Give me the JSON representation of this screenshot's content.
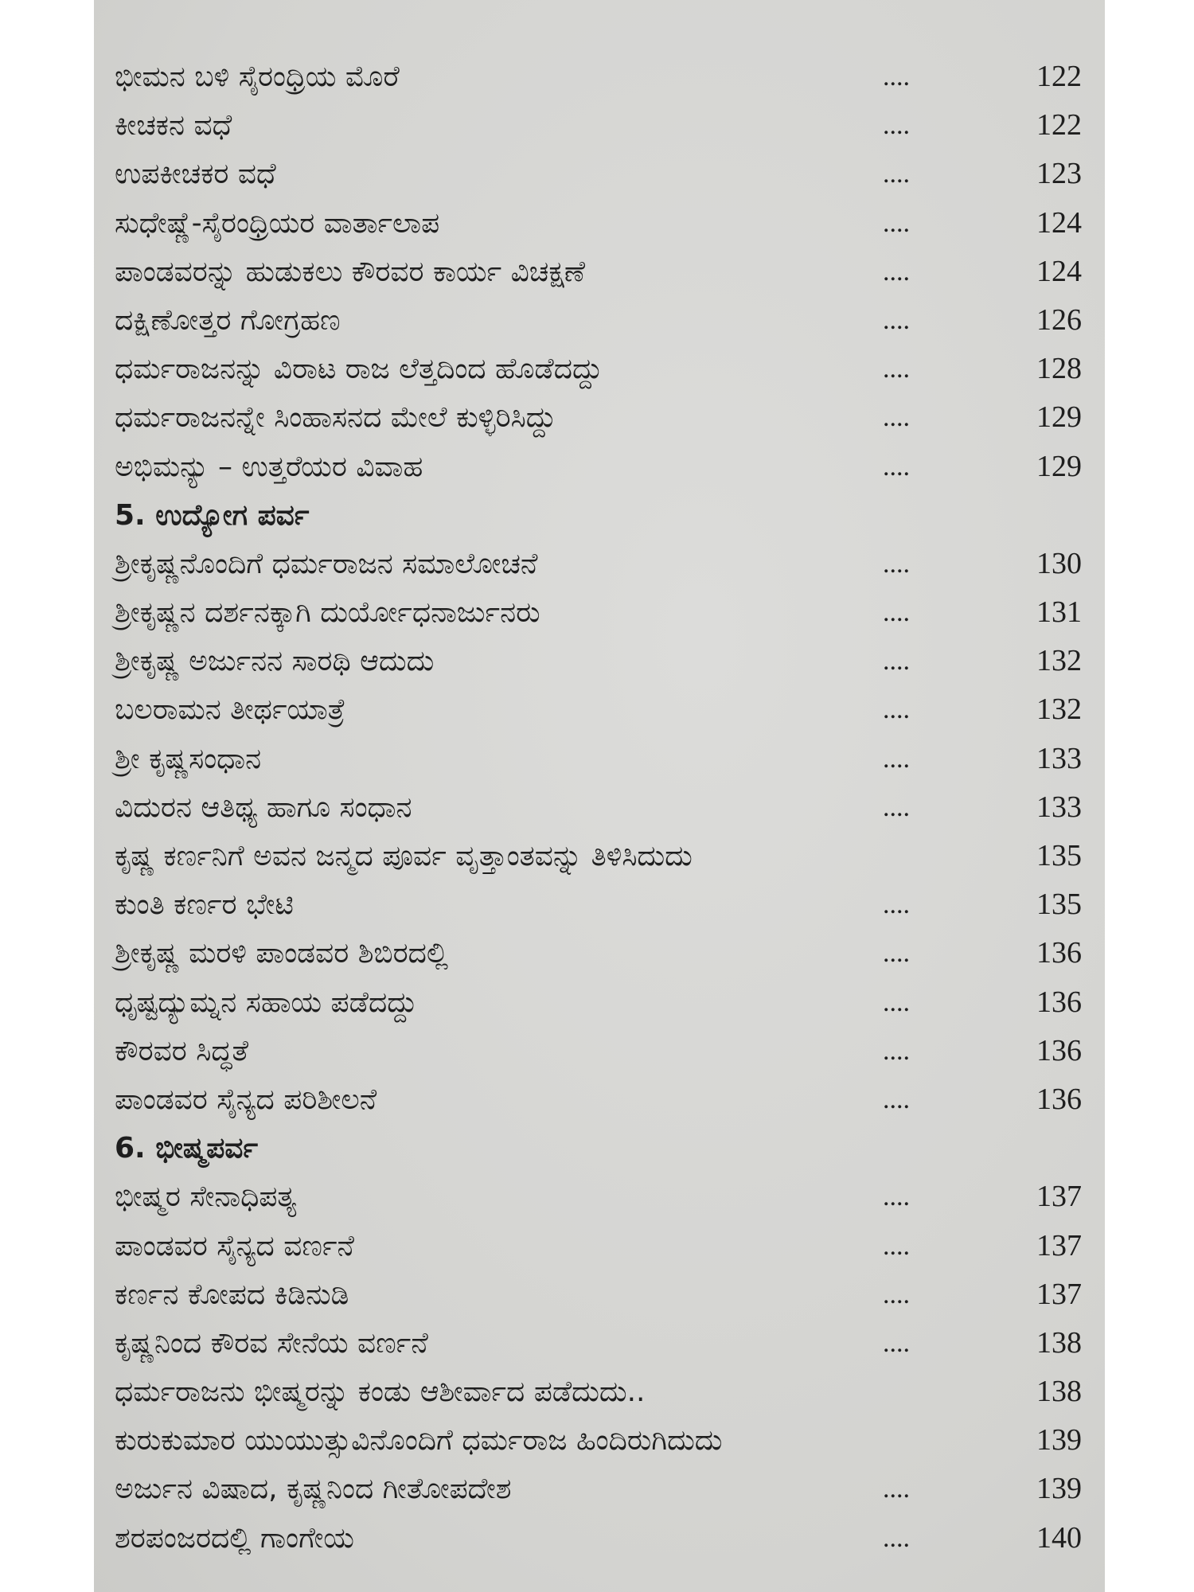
{
  "entries": [
    {
      "title": "ಭೀಮನ ಬಳಿ ಸೈರಂಧ್ರಿಯ ಮೊರೆ",
      "dots": "....",
      "page": "122"
    },
    {
      "title": "ಕೀಚಕನ ವಧೆ",
      "dots": "....",
      "page": "122"
    },
    {
      "title": "ಉಪಕೀಚಕರ ವಧೆ",
      "dots": "....",
      "page": "123"
    },
    {
      "title": "ಸುಧೇಷ್ಣೆ-ಸೈರಂಧ್ರಿಯರ ವಾರ್ತಾಲಾಪ",
      "dots": "....",
      "page": "124"
    },
    {
      "title": "ಪಾಂಡವರನ್ನು ಹುಡುಕಲು ಕೌರವರ ಕಾರ್ಯ ವಿಚಕ್ಷಣೆ",
      "dots": "....",
      "page": "124"
    },
    {
      "title": "ದಕ್ಷಿಣೋತ್ತರ ಗೋಗ್ರಹಣ",
      "dots": "....",
      "page": "126"
    },
    {
      "title": "ಧರ್ಮರಾಜನನ್ನು ವಿರಾಟ ರಾಜ ಲೆತ್ತದಿಂದ ಹೊಡೆದದ್ದು",
      "dots": "....",
      "page": "128"
    },
    {
      "title": "ಧರ್ಮರಾಜನನ್ನೇ ಸಿಂಹಾಸನದ ಮೇಲೆ ಕುಳ್ಳಿರಿಸಿದ್ದು",
      "dots": "....",
      "page": "129"
    },
    {
      "title": "ಅಭಿಮನ್ಯು – ಉತ್ತರೆಯರ ವಿವಾಹ",
      "dots": "....",
      "page": "129"
    },
    {
      "title": "5. ಉದ್ಯೋಗ ಪರ್ವ",
      "dots": "",
      "page": "",
      "header": true
    },
    {
      "title": "ಶ್ರೀಕೃಷ್ಣನೊಂದಿಗೆ ಧರ್ಮರಾಜನ ಸಮಾಲೋಚನೆ",
      "dots": "....",
      "page": "130"
    },
    {
      "title": "ಶ್ರೀಕೃಷ್ಣನ ದರ್ಶನಕ್ಕಾಗಿ ದುರ್ಯೋಧನಾರ್ಜುನರು",
      "dots": "....",
      "page": "131"
    },
    {
      "title": "ಶ್ರೀಕೃಷ್ಣ ಅರ್ಜುನನ ಸಾರಥಿ ಆದುದು",
      "dots": "....",
      "page": "132"
    },
    {
      "title": "ಬಲರಾಮನ ತೀರ್ಥಯಾತ್ರೆ",
      "dots": "....",
      "page": "132"
    },
    {
      "title": "ಶ್ರೀ ಕೃಷ್ಣಸಂಧಾನ",
      "dots": "....",
      "page": "133"
    },
    {
      "title": "ವಿದುರನ ಆತಿಥ್ಯ ಹಾಗೂ ಸಂಧಾನ",
      "dots": "....",
      "page": "133"
    },
    {
      "title": "ಕೃಷ್ಣ ಕರ್ಣನಿಗೆ ಅವನ ಜನ್ಮದ ಪೂರ್ವ ವೃತ್ತಾಂತವನ್ನು ತಿಳಿಸಿದುದು",
      "dots": "",
      "page": "135"
    },
    {
      "title": "ಕುಂತಿ ಕರ್ಣರ ಭೇಟಿ",
      "dots": "....",
      "page": "135"
    },
    {
      "title": "ಶ್ರೀಕೃಷ್ಣ ಮರಳಿ ಪಾಂಡವರ ಶಿಬಿರದಲ್ಲಿ",
      "dots": "....",
      "page": "136"
    },
    {
      "title": "ಧೃಷ್ಟದ್ಯುಮ್ನನ ಸಹಾಯ ಪಡೆದದ್ದು",
      "dots": "....",
      "page": "136"
    },
    {
      "title": "ಕೌರವರ ಸಿದ್ಧತೆ",
      "dots": "....",
      "page": "136"
    },
    {
      "title": "ಪಾಂಡವರ ಸೈನ್ಯದ ಪರಿಶೀಲನೆ",
      "dots": "....",
      "page": "136"
    },
    {
      "title": "6. ಭೀಷ್ಮಪರ್ವ",
      "dots": "",
      "page": "",
      "header": true
    },
    {
      "title": "ಭೀಷ್ಮರ ಸೇನಾಧಿಪತ್ಯ",
      "dots": "....",
      "page": "137"
    },
    {
      "title": "ಪಾಂಡವರ ಸೈನ್ಯದ ವರ್ಣನೆ",
      "dots": "....",
      "page": "137"
    },
    {
      "title": "ಕರ್ಣನ ಕೋಪದ ಕಿಡಿನುಡಿ",
      "dots": "....",
      "page": "137"
    },
    {
      "title": "ಕೃಷ್ಣನಿಂದ ಕೌರವ ಸೇನೆಯ ವರ್ಣನೆ",
      "dots": "....",
      "page": "138"
    },
    {
      "title": "ಧರ್ಮರಾಜನು ಭೀಷ್ಮರನ್ನು ಕಂಡು ಆಶೀರ್ವಾದ ಪಡೆದುದು..",
      "dots": "",
      "page": "138"
    },
    {
      "title": "ಕುರುಕುಮಾರ ಯುಯುತ್ಸುವಿನೊಂದಿಗೆ ಧರ್ಮರಾಜ ಹಿಂದಿರುಗಿದುದು",
      "dots": "",
      "page": "139"
    },
    {
      "title": "ಅರ್ಜುನ ವಿಷಾದ, ಕೃಷ್ಣನಿಂದ ಗೀತೋಪದೇಶ",
      "dots": "....",
      "page": "139"
    },
    {
      "title": "ಶರಪಂಜರದಲ್ಲಿ ಗಾಂಗೇಯ",
      "dots": "....",
      "page": "140"
    }
  ]
}
